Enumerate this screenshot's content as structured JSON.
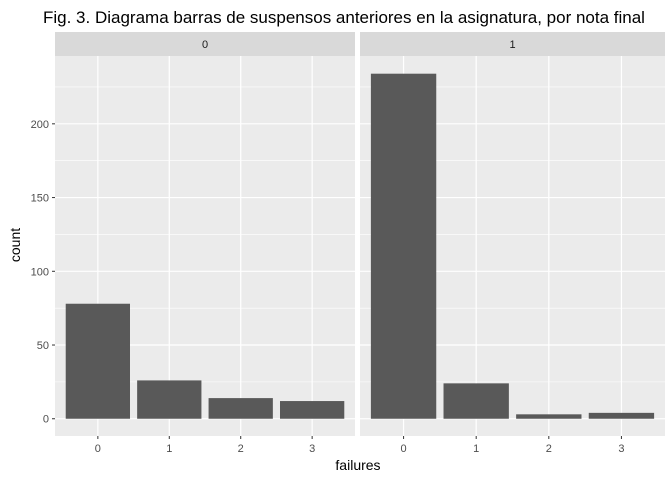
{
  "chart_data": {
    "type": "bar",
    "title": "Fig. 3. Diagrama barras de suspensos anteriores en la asignatura, por nota final",
    "xlabel": "failures",
    "ylabel": "count",
    "categories": [
      "0",
      "1",
      "2",
      "3"
    ],
    "y_ticks": [
      0,
      50,
      100,
      150,
      200
    ],
    "y_tick_labels": [
      "0",
      "50",
      "100",
      "150",
      "200"
    ],
    "ylim": [
      -11.7,
      246
    ],
    "grid": true,
    "facets": [
      {
        "label": "0",
        "values": [
          78,
          26,
          14,
          12
        ]
      },
      {
        "label": "1",
        "values": [
          234,
          24,
          3,
          4
        ]
      }
    ],
    "colors": {
      "bar": "#595959",
      "panel": "#ebebeb",
      "strip": "#d9d9d9",
      "grid": "#ffffff",
      "tick": "#333333"
    }
  }
}
